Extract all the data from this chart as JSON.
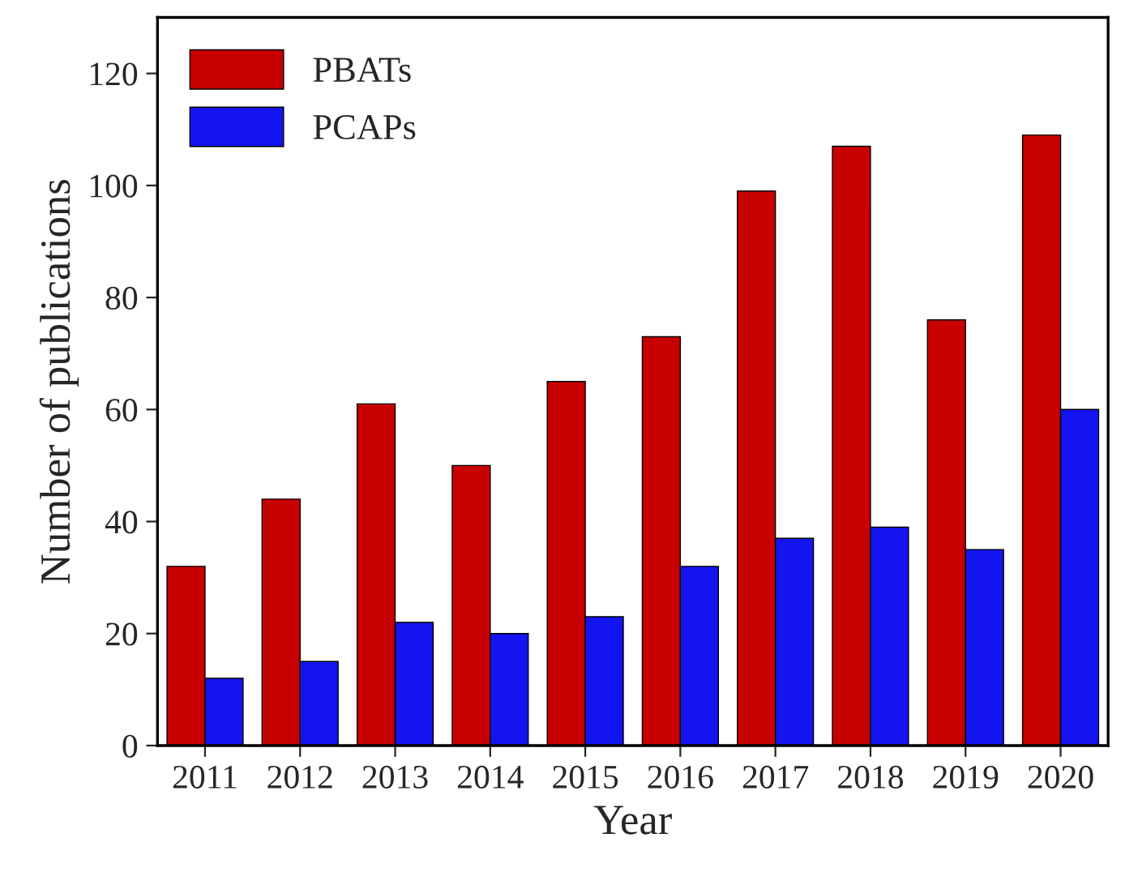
{
  "chart_data": {
    "type": "bar",
    "xlabel": "Year",
    "ylabel": "Number of publications",
    "categories": [
      "2011",
      "2012",
      "2013",
      "2014",
      "2015",
      "2016",
      "2017",
      "2018",
      "2019",
      "2020"
    ],
    "series": [
      {
        "name": "PBATs",
        "color": "#c80000",
        "values": [
          32,
          44,
          61,
          50,
          65,
          73,
          99,
          107,
          76,
          109
        ]
      },
      {
        "name": "PCAPs",
        "color": "#1414f0",
        "values": [
          12,
          15,
          22,
          20,
          23,
          32,
          37,
          39,
          35,
          60
        ]
      }
    ],
    "ylim": [
      0,
      130
    ],
    "yticks": [
      0,
      20,
      40,
      60,
      80,
      100,
      120
    ],
    "grid": false,
    "legend": "top left"
  }
}
